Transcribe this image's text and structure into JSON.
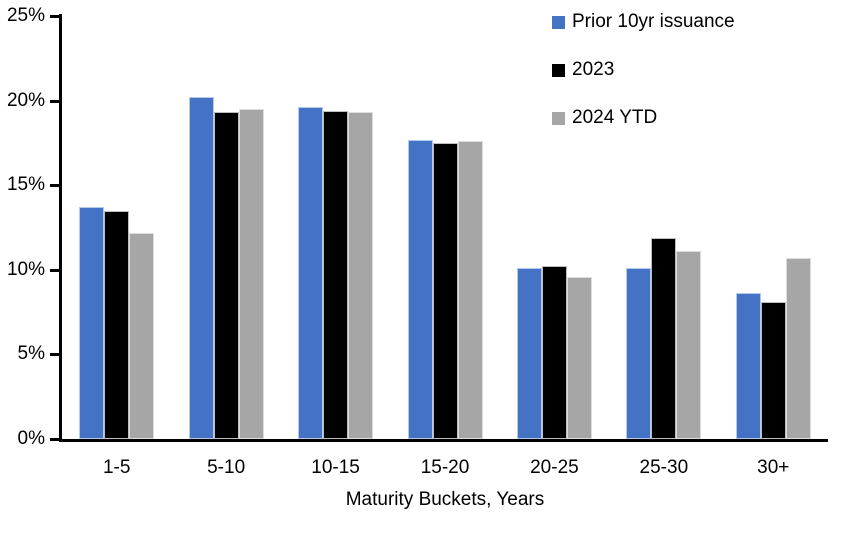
{
  "chart_data": {
    "type": "bar",
    "title": "",
    "xlabel": "Maturity Buckets, Years",
    "ylabel": "",
    "categories": [
      "1-5",
      "5-10",
      "10-15",
      "15-20",
      "20-25",
      "25-30",
      "30+"
    ],
    "series": [
      {
        "name": "Prior 10yr issuance",
        "color": "#4472C4",
        "edge_color": "#B7C9EA",
        "values": [
          13.7,
          20.2,
          19.6,
          17.7,
          10.1,
          10.1,
          8.6
        ]
      },
      {
        "name": "2023",
        "color": "#000000",
        "edge_color": "#BDBDBD",
        "values": [
          13.5,
          19.3,
          19.4,
          17.5,
          10.2,
          11.9,
          8.1
        ]
      },
      {
        "name": "2024 YTD",
        "color": "#A6A6A6",
        "edge_color": "#DDDDDD",
        "values": [
          12.2,
          19.5,
          19.3,
          17.6,
          9.6,
          11.1,
          10.7
        ]
      }
    ],
    "ylim": [
      0,
      25
    ],
    "yticks": [
      0,
      5,
      10,
      15,
      20,
      25
    ],
    "ytick_labels": [
      "0%",
      "5%",
      "10%",
      "15%",
      "20%",
      "25%"
    ],
    "grid": false,
    "legend_position": "top-right",
    "axis_color": "#000000"
  }
}
